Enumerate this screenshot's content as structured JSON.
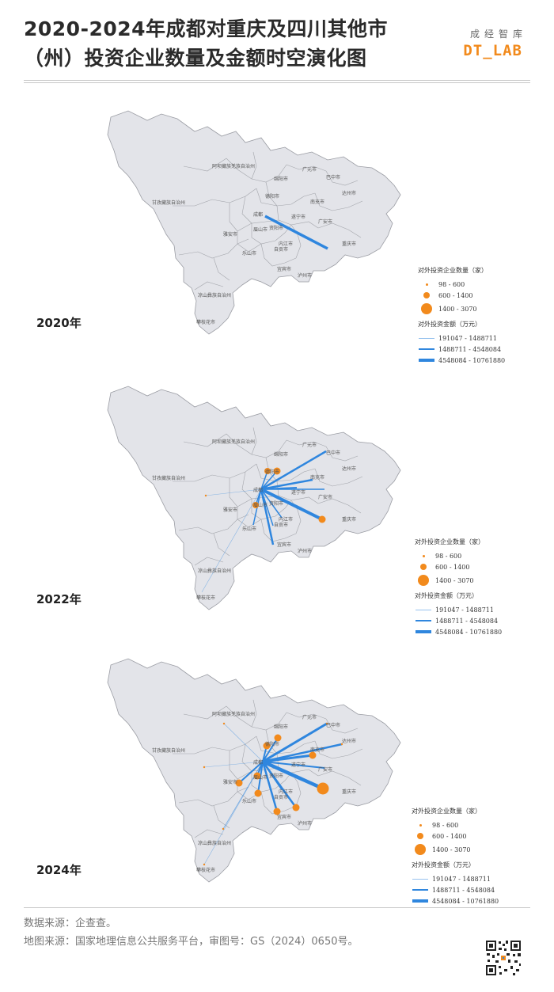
{
  "title": "2020-2024年成都对重庆及四川其他市（州）投资企业数量及金额时空演化图",
  "brand": {
    "cn": "成经智库",
    "en": "DT_LAB"
  },
  "colors": {
    "region": "#e3e4e9",
    "border": "#9a9ca3",
    "dot": "#f28a1c",
    "line": "#2f86de"
  },
  "region_labels": [
    "阿坝藏族羌族自治州",
    "甘孜藏族自治州",
    "凉山彝族自治州",
    "攀枝花市",
    "广元市",
    "巴中市",
    "达州市",
    "南充市",
    "绵阳市",
    "德阳市",
    "成都",
    "遂宁市",
    "广安市",
    "资阳市",
    "内江市",
    "雅安市",
    "眉山市",
    "乐山市",
    "自贡市",
    "宜宾市",
    "泸州市",
    "重庆市"
  ],
  "maps": [
    {
      "year": "2020年",
      "legend": {
        "count_title": "对外投资企业数量（家）",
        "count_items": [
          "98 - 600",
          "600 - 1400",
          "1400 - 3070"
        ],
        "amount_title": "对外投资金额（万元）",
        "amount_items": [
          "191047 - 1488711",
          "1488711 - 4548084",
          "4548084 - 10761880"
        ]
      }
    },
    {
      "year": "2022年",
      "legend": {
        "count_title": "对外投资企业数量（家）",
        "count_items": [
          "98 - 600",
          "600 - 1400",
          "1400 - 3070"
        ],
        "amount_title": "对外投资金额（万元）",
        "amount_items": [
          "191047 - 1488711",
          "1488711 - 4548084",
          "4548084 - 10761880"
        ]
      }
    },
    {
      "year": "2024年",
      "legend": {
        "count_title": "对外投资企业数量（家）",
        "count_items": [
          "98 - 600",
          "600 - 1400",
          "1400 - 3070"
        ],
        "amount_title": "对外投资金额（万元）",
        "amount_items": [
          "191047 - 1488711",
          "1488711 - 4548084",
          "4548084 - 10761880"
        ]
      }
    }
  ],
  "footer": {
    "data_source": "数据来源：企查查。",
    "map_source": "地图来源：国家地理信息公共服务平台，审图号：GS（2024）0650号。"
  }
}
